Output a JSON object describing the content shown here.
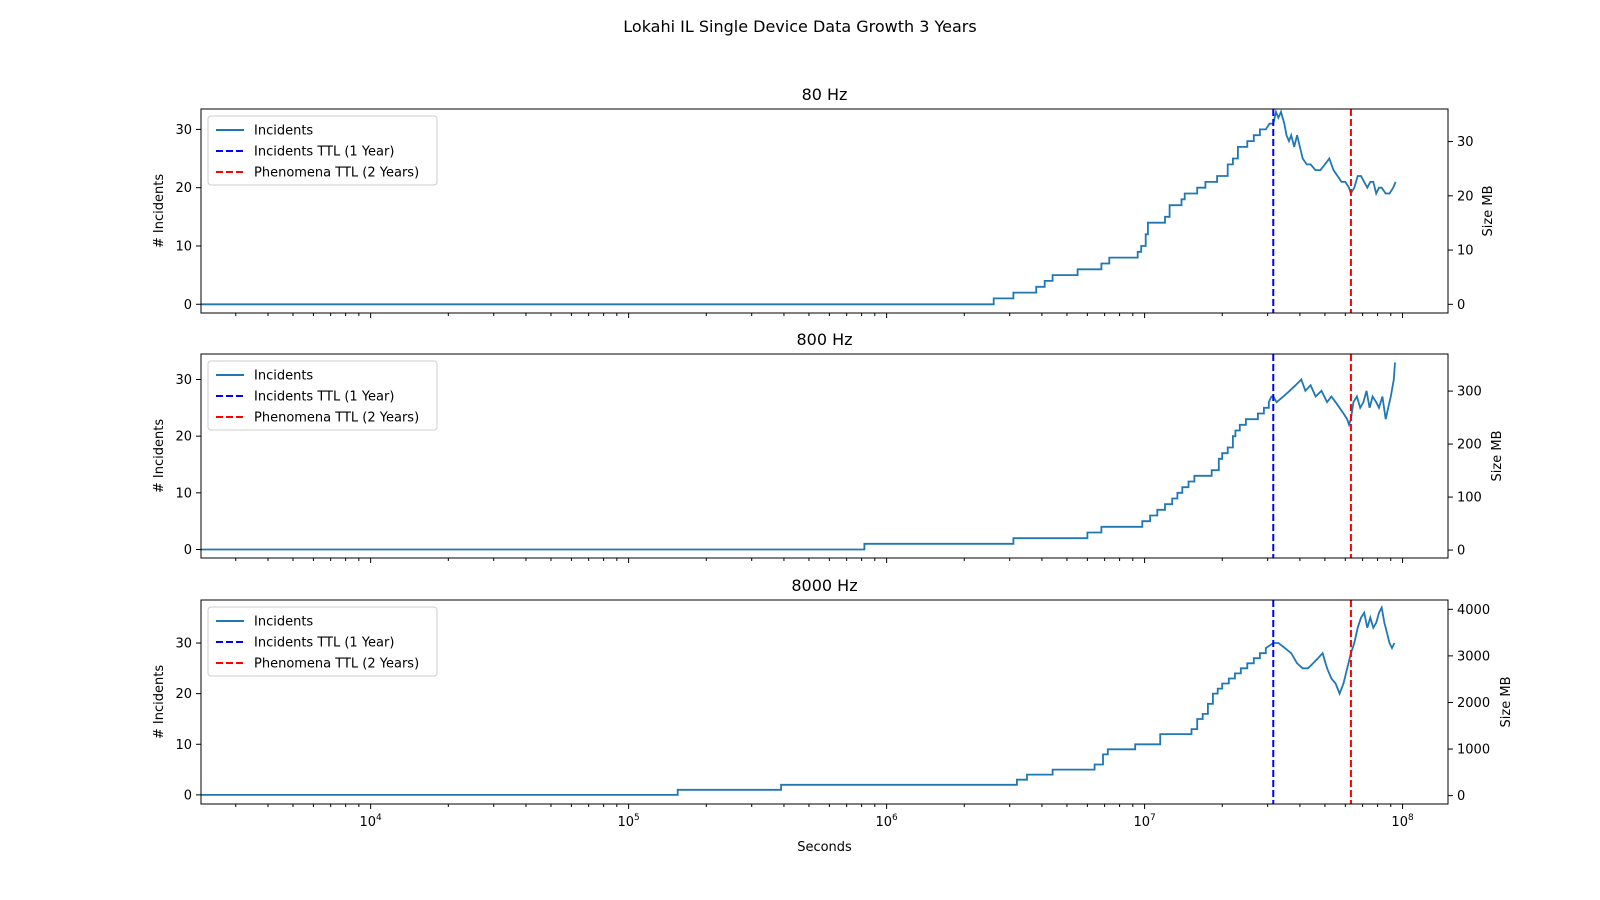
{
  "figure": {
    "title": "Lokahi IL Single Device Data Growth 3 Years"
  },
  "colors": {
    "incidents": "#1f77b4",
    "incidents_ttl": "#0000ff",
    "phenomena_ttl": "#ff0000"
  },
  "chart_data": [
    {
      "type": "line",
      "title": "80 Hz",
      "xlabel": "",
      "ylabel": "# Incidents",
      "ylabel_right": "Size MB",
      "xscale": "log",
      "xlim": [
        2200,
        150000000
      ],
      "ylim": [
        -1.5,
        33.5
      ],
      "yticks": [
        0,
        10,
        20,
        30
      ],
      "ylim_right": [
        -1.6,
        36.0
      ],
      "yticks_right": [
        0,
        10,
        20,
        30
      ],
      "legend_position": "upper left",
      "legend": [
        "Incidents",
        "Incidents TTL (1 Year)",
        "Phenomena TTL (2 Years)"
      ],
      "vlines": [
        {
          "name": "Incidents TTL (1 Year)",
          "x": 31536000,
          "style": "dashed",
          "color": "blue"
        },
        {
          "name": "Phenomena TTL (2 Years)",
          "x": 63072000,
          "style": "dashed",
          "color": "red"
        }
      ],
      "series": [
        {
          "name": "Incidents",
          "x": [
            2200,
            2600000,
            2600000,
            3100000,
            3100000,
            3800000,
            3800000,
            4100000,
            4100000,
            4400000,
            4400000,
            5500000,
            5500000,
            6800000,
            6800000,
            7300000,
            7300000,
            8100000,
            8100000,
            9400000,
            9400000,
            9700000,
            9700000,
            10100000,
            10100000,
            10300000,
            10300000,
            12000000,
            12000000,
            12500000,
            12500000,
            13900000,
            13900000,
            14300000,
            14300000,
            16000000,
            16000000,
            17200000,
            17200000,
            19100000,
            19100000,
            21000000,
            21000000,
            22000000,
            22000000,
            23000000,
            23000000,
            25000000,
            25000000,
            26500000,
            26500000,
            28000000,
            28000000,
            29500000,
            30500000,
            31536000,
            32300000,
            33000000,
            33800000,
            34800000,
            35500000,
            36300000,
            37000000,
            38000000,
            39000000,
            40000000,
            41000000,
            42500000,
            44000000,
            46000000,
            48000000,
            50000000,
            52000000,
            54000000,
            56000000,
            58000000,
            60000000,
            62000000,
            63072000,
            65000000,
            67000000,
            69000000,
            71000000,
            73000000,
            75000000,
            77000000,
            79000000,
            81000000,
            83000000,
            86000000,
            89000000,
            92000000,
            94000000
          ],
          "values": [
            0,
            0,
            1,
            1,
            2,
            2,
            3,
            3,
            4,
            4,
            5,
            5,
            6,
            6,
            7,
            7,
            8,
            8,
            8,
            8,
            9,
            9,
            10,
            10,
            12,
            12,
            14,
            14,
            15,
            15,
            17,
            17,
            18,
            18,
            19,
            19,
            20,
            20,
            21,
            21,
            22,
            22,
            24,
            24,
            25,
            25,
            27,
            27,
            28,
            28,
            29,
            29,
            30,
            30,
            31,
            31,
            33,
            32,
            33,
            31,
            29,
            28,
            29,
            27,
            29,
            27,
            25,
            24,
            24,
            23,
            23,
            24,
            25,
            23,
            22,
            21,
            21,
            20,
            19,
            20,
            22,
            22,
            21,
            20,
            21,
            21,
            19,
            20,
            20,
            19,
            19,
            20,
            21
          ]
        }
      ]
    },
    {
      "type": "line",
      "title": "800 Hz",
      "xlabel": "",
      "ylabel": "# Incidents",
      "ylabel_right": "Size MB",
      "xscale": "log",
      "xlim": [
        2200,
        150000000
      ],
      "ylim": [
        -1.5,
        34.5
      ],
      "yticks": [
        0,
        10,
        20,
        30
      ],
      "ylim_right": [
        -15,
        370
      ],
      "yticks_right": [
        0,
        100,
        200,
        300
      ],
      "legend_position": "upper left",
      "legend": [
        "Incidents",
        "Incidents TTL (1 Year)",
        "Phenomena TTL (2 Years)"
      ],
      "vlines": [
        {
          "name": "Incidents TTL (1 Year)",
          "x": 31536000,
          "style": "dashed",
          "color": "blue"
        },
        {
          "name": "Phenomena TTL (2 Years)",
          "x": 63072000,
          "style": "dashed",
          "color": "red"
        }
      ],
      "series": [
        {
          "name": "Incidents",
          "x": [
            2200,
            820000,
            820000,
            3100000,
            3100000,
            6000000,
            6000000,
            6800000,
            6800000,
            9800000,
            9800000,
            10500000,
            10500000,
            11200000,
            11200000,
            12000000,
            12000000,
            12800000,
            12800000,
            13400000,
            13400000,
            14000000,
            14000000,
            14800000,
            14800000,
            15600000,
            15600000,
            18200000,
            18200000,
            19400000,
            19400000,
            20000000,
            20000000,
            21000000,
            21000000,
            22000000,
            22000000,
            22500000,
            22500000,
            23400000,
            23400000,
            24700000,
            24700000,
            27500000,
            27500000,
            29000000,
            29000000,
            30300000,
            30300000,
            31000000,
            31536000,
            32500000,
            34500000,
            36500000,
            38500000,
            40500000,
            42000000,
            44000000,
            46000000,
            48500000,
            51000000,
            53000000,
            55000000,
            57000000,
            59000000,
            61000000,
            62000000,
            63072000,
            64500000,
            66500000,
            68500000,
            70500000,
            72500000,
            74500000,
            76500000,
            79000000,
            81000000,
            83500000,
            86000000,
            88000000,
            90000000,
            92500000,
            93500000
          ],
          "values": [
            0,
            0,
            1,
            1,
            2,
            2,
            3,
            3,
            4,
            4,
            5,
            5,
            6,
            6,
            7,
            7,
            8,
            8,
            9,
            9,
            10,
            10,
            11,
            11,
            12,
            12,
            13,
            13,
            14,
            14,
            16,
            16,
            17,
            17,
            18,
            18,
            20,
            20,
            21,
            21,
            22,
            22,
            23,
            23,
            24,
            24,
            25,
            25,
            26,
            27,
            27,
            26,
            27,
            28,
            29,
            30,
            28,
            29,
            27,
            28,
            26,
            27,
            26,
            25,
            24,
            23,
            22,
            23,
            26,
            27,
            25,
            26,
            28,
            25,
            27,
            26,
            25,
            27,
            23,
            25,
            27,
            30,
            33
          ]
        }
      ]
    },
    {
      "type": "line",
      "title": "8000 Hz",
      "xlabel": "Seconds",
      "ylabel": "# Incidents",
      "ylabel_right": "Size MB",
      "xscale": "log",
      "xlim": [
        2200,
        150000000
      ],
      "ylim": [
        -1.8,
        38.5
      ],
      "yticks": [
        0,
        10,
        20,
        30
      ],
      "ylim_right": [
        -180,
        4200
      ],
      "yticks_right": [
        0,
        1000,
        2000,
        3000,
        4000
      ],
      "xticks": [
        "10^4",
        "10^5",
        "10^6",
        "10^7",
        "10^8"
      ],
      "legend_position": "upper left",
      "legend": [
        "Incidents",
        "Incidents TTL (1 Year)",
        "Phenomena TTL (2 Years)"
      ],
      "vlines": [
        {
          "name": "Incidents TTL (1 Year)",
          "x": 31536000,
          "style": "dashed",
          "color": "blue"
        },
        {
          "name": "Phenomena TTL (2 Years)",
          "x": 63072000,
          "style": "dashed",
          "color": "red"
        }
      ],
      "series": [
        {
          "name": "Incidents",
          "x": [
            2200,
            155000,
            155000,
            390000,
            390000,
            3200000,
            3200000,
            3500000,
            3500000,
            4400000,
            4400000,
            6400000,
            6400000,
            6900000,
            6900000,
            7200000,
            7200000,
            9200000,
            9200000,
            11500000,
            11500000,
            15200000,
            15200000,
            16000000,
            16000000,
            16800000,
            16800000,
            17600000,
            17600000,
            18400000,
            18400000,
            19200000,
            19200000,
            20000000,
            20000000,
            21200000,
            21200000,
            22400000,
            22400000,
            23600000,
            23600000,
            25000000,
            25000000,
            26500000,
            26500000,
            28000000,
            28000000,
            29500000,
            29500000,
            31536000,
            33000000,
            35000000,
            37000000,
            39000000,
            41000000,
            43000000,
            45000000,
            47000000,
            49000000,
            51000000,
            53000000,
            55000000,
            57000000,
            59000000,
            61000000,
            63072000,
            65000000,
            67000000,
            69000000,
            71000000,
            73000000,
            75000000,
            77000000,
            79000000,
            81000000,
            83000000,
            85000000,
            87000000,
            89000000,
            91000000,
            93000000
          ],
          "values": [
            0,
            0,
            1,
            1,
            2,
            2,
            3,
            3,
            4,
            4,
            5,
            5,
            6,
            6,
            8,
            8,
            9,
            9,
            10,
            10,
            12,
            12,
            13,
            13,
            15,
            15,
            16,
            16,
            18,
            18,
            20,
            20,
            21,
            21,
            22,
            22,
            23,
            23,
            24,
            24,
            25,
            25,
            26,
            26,
            27,
            27,
            28,
            28,
            29,
            30,
            30,
            29,
            28,
            26,
            25,
            25,
            26,
            27,
            28,
            25,
            23,
            22,
            20,
            22,
            25,
            28,
            30,
            33,
            35,
            36,
            33,
            35,
            33,
            34,
            36,
            37,
            34,
            32,
            30,
            29,
            30
          ]
        }
      ]
    }
  ]
}
